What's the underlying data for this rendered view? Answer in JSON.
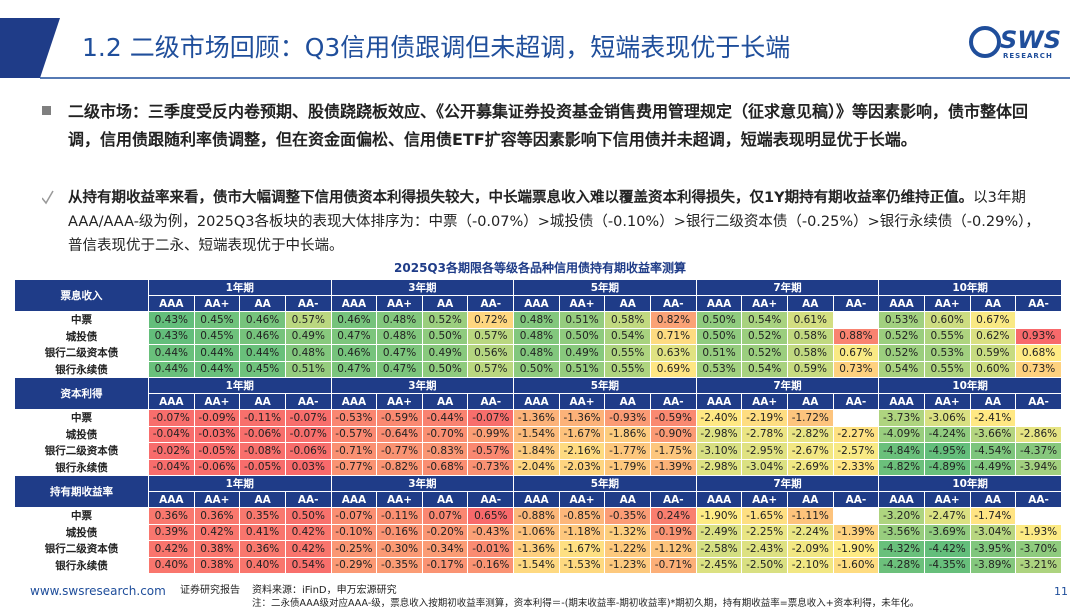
{
  "header": {
    "title": "1.2 二级市场回顾：Q3信用债跟调但未超调，短端表现优于长端",
    "logo": "SWS",
    "logo_sub": "RESEARCH"
  },
  "bullets": [
    {
      "text": "二级市场：三季度受反内卷预期、股债跷跷板效应、《公开募集证券投资基金销售费用管理规定（征求意见稿）》等因素影响，债市整体回调，信用债跟随利率债调整，但在资金面偏松、信用债ETF扩容等因素影响下信用债并未超调，短端表现明显优于长端。"
    },
    {
      "bold": "从持有期收益率来看，债市大幅调整下信用债资本利得损失较大，中长端票息收入难以覆盖资本利得损失，仅1Y期持有期收益率仍维持正值。",
      "text": "以3年期AAA/AAA-级为例，2025Q3各板块的表现大体排序为：中票（-0.07%）>城投债（-0.10%）>银行二级资本债（-0.25%）>银行永续债（-0.29%），普信表现优于二永、短端表现优于中长端。"
    }
  ],
  "table": {
    "title": "2025Q3各期限各等级各品种信用债持有期收益率测算",
    "periods": [
      "1年期",
      "3年期",
      "5年期",
      "7年期",
      "10年期"
    ],
    "grades": [
      "AAA",
      "AA+",
      "AA",
      "AA-"
    ],
    "row_labels": [
      "中票",
      "城投债",
      "银行二级资本债",
      "银行永续债"
    ],
    "sections": [
      {
        "name": "票息收入",
        "cells": [
          [
            "0.43%",
            "0.45%",
            "0.46%",
            "0.57%",
            "0.46%",
            "0.48%",
            "0.52%",
            "0.72%",
            "0.48%",
            "0.51%",
            "0.58%",
            "0.82%",
            "0.50%",
            "0.54%",
            "0.61%",
            null,
            "0.53%",
            "0.60%",
            "0.67%",
            null
          ],
          [
            "0.43%",
            "0.45%",
            "0.46%",
            "0.49%",
            "0.47%",
            "0.48%",
            "0.50%",
            "0.57%",
            "0.48%",
            "0.50%",
            "0.54%",
            "0.71%",
            "0.50%",
            "0.52%",
            "0.58%",
            "0.88%",
            "0.52%",
            "0.55%",
            "0.62%",
            "0.93%"
          ],
          [
            "0.44%",
            "0.44%",
            "0.44%",
            "0.48%",
            "0.46%",
            "0.47%",
            "0.49%",
            "0.56%",
            "0.48%",
            "0.49%",
            "0.55%",
            "0.63%",
            "0.51%",
            "0.52%",
            "0.58%",
            "0.67%",
            "0.52%",
            "0.53%",
            "0.59%",
            "0.68%"
          ],
          [
            "0.44%",
            "0.44%",
            "0.45%",
            "0.51%",
            "0.47%",
            "0.47%",
            "0.50%",
            "0.57%",
            "0.50%",
            "0.51%",
            "0.55%",
            "0.69%",
            "0.53%",
            "0.54%",
            "0.59%",
            "0.73%",
            "0.54%",
            "0.55%",
            "0.60%",
            "0.73%"
          ]
        ]
      },
      {
        "name": "资本利得",
        "cells": [
          [
            "-0.07%",
            "-0.09%",
            "-0.11%",
            "-0.07%",
            "-0.53%",
            "-0.59%",
            "-0.44%",
            "-0.07%",
            "-1.36%",
            "-1.36%",
            "-0.93%",
            "-0.59%",
            "-2.40%",
            "-2.19%",
            "-1.72%",
            null,
            "-3.73%",
            "-3.06%",
            "-2.41%",
            null
          ],
          [
            "-0.04%",
            "-0.03%",
            "-0.06%",
            "-0.07%",
            "-0.57%",
            "-0.64%",
            "-0.70%",
            "-0.99%",
            "-1.54%",
            "-1.67%",
            "-1.86%",
            "-0.90%",
            "-2.98%",
            "-2.78%",
            "-2.82%",
            "-2.27%",
            "-4.09%",
            "-4.24%",
            "-3.66%",
            "-2.86%"
          ],
          [
            "-0.02%",
            "-0.05%",
            "-0.08%",
            "-0.06%",
            "-0.71%",
            "-0.77%",
            "-0.83%",
            "-0.57%",
            "-1.84%",
            "-2.16%",
            "-1.77%",
            "-1.75%",
            "-3.10%",
            "-2.95%",
            "-2.67%",
            "-2.57%",
            "-4.84%",
            "-4.95%",
            "-4.54%",
            "-4.37%"
          ],
          [
            "-0.04%",
            "-0.06%",
            "-0.05%",
            "0.03%",
            "-0.77%",
            "-0.82%",
            "-0.68%",
            "-0.73%",
            "-2.04%",
            "-2.03%",
            "-1.79%",
            "-1.39%",
            "-2.98%",
            "-3.04%",
            "-2.69%",
            "-2.33%",
            "-4.82%",
            "-4.89%",
            "-4.49%",
            "-3.94%"
          ]
        ]
      },
      {
        "name": "持有期收益率",
        "cells": [
          [
            "0.36%",
            "0.36%",
            "0.35%",
            "0.50%",
            "-0.07%",
            "-0.11%",
            "0.07%",
            "0.65%",
            "-0.88%",
            "-0.85%",
            "-0.35%",
            "0.24%",
            "-1.90%",
            "-1.65%",
            "-1.11%",
            null,
            "-3.20%",
            "-2.47%",
            "-1.74%",
            null
          ],
          [
            "0.39%",
            "0.42%",
            "0.41%",
            "0.42%",
            "-0.10%",
            "-0.16%",
            "-0.20%",
            "-0.43%",
            "-1.06%",
            "-1.18%",
            "-1.32%",
            "-0.19%",
            "-2.49%",
            "-2.25%",
            "-2.24%",
            "-1.39%",
            "-3.56%",
            "-3.69%",
            "-3.04%",
            "-1.93%"
          ],
          [
            "0.42%",
            "0.38%",
            "0.36%",
            "0.42%",
            "-0.25%",
            "-0.30%",
            "-0.34%",
            "-0.01%",
            "-1.36%",
            "-1.67%",
            "-1.22%",
            "-1.12%",
            "-2.58%",
            "-2.43%",
            "-2.09%",
            "-1.90%",
            "-4.32%",
            "-4.42%",
            "-3.95%",
            "-3.70%"
          ],
          [
            "0.40%",
            "0.38%",
            "0.40%",
            "0.54%",
            "-0.29%",
            "-0.35%",
            "-0.17%",
            "-0.16%",
            "-1.54%",
            "-1.53%",
            "-1.23%",
            "-0.71%",
            "-2.45%",
            "-2.50%",
            "-2.10%",
            "-1.60%",
            "-4.28%",
            "-4.35%",
            "-3.89%",
            "-3.21%"
          ]
        ]
      }
    ]
  },
  "footer": {
    "url": "www.swsresearch.com",
    "report": "证券研究报告",
    "source": "资料来源：iFinD，申万宏源研究",
    "note": "注：二永债AAA级对应AAA-级，票息收入按期初收益率测算，资本利得＝-(期末收益率-期初收益率)*期初久期，持有期收益率=票息收入+资本利得，未年化。",
    "page": "11"
  }
}
